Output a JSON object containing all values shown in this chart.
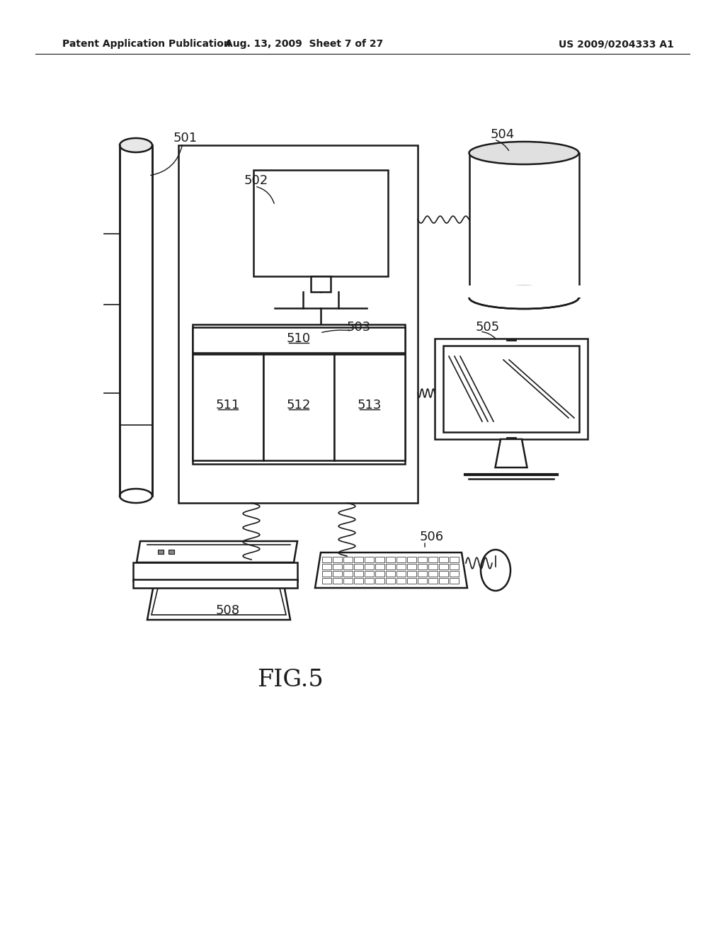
{
  "bg_color": "#ffffff",
  "header_left": "Patent Application Publication",
  "header_center": "Aug. 13, 2009  Sheet 7 of 27",
  "header_right": "US 2009/0204333 A1",
  "figure_label": "FIG.5"
}
